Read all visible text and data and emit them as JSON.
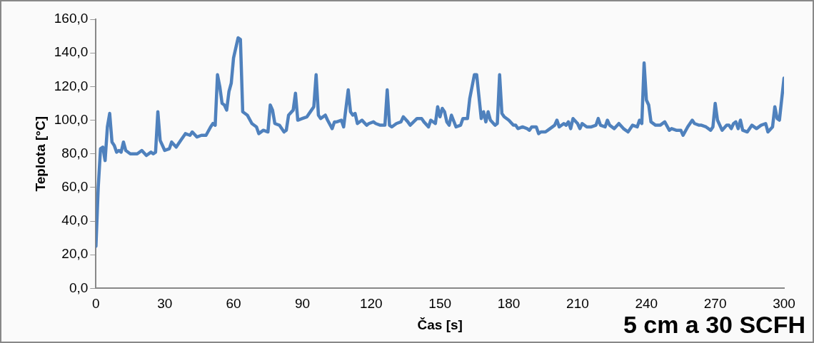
{
  "chart_data": {
    "type": "line",
    "xlabel": "Čas [s]",
    "ylabel": "Teplota [°C]",
    "annotations": [
      "5 cm a 30 SCFH"
    ],
    "xlim": [
      0,
      300
    ],
    "xticks": [
      0,
      30,
      60,
      90,
      120,
      150,
      180,
      210,
      240,
      270,
      300
    ],
    "ylim": [
      0,
      160
    ],
    "yticks": [
      {
        "value": 0,
        "label": "0,0"
      },
      {
        "value": 20,
        "label": "20,0"
      },
      {
        "value": 40,
        "label": "40,0"
      },
      {
        "value": 60,
        "label": "60,0"
      },
      {
        "value": 80,
        "label": "80,0"
      },
      {
        "value": 100,
        "label": "100,0"
      },
      {
        "value": 120,
        "label": "120,0"
      },
      {
        "value": 140,
        "label": "140,0"
      },
      {
        "value": 160,
        "label": "160,0"
      }
    ],
    "grid": false,
    "legend": false,
    "marker": "none",
    "line_style": "solid",
    "series": [
      {
        "color": "#4f81bd",
        "x": [
          0,
          1,
          2,
          3,
          4,
          5,
          6,
          7,
          8,
          9,
          10,
          11,
          12,
          13,
          15,
          18,
          20,
          22,
          24,
          25,
          26,
          27,
          28,
          30,
          32,
          33,
          35,
          37,
          39,
          41,
          42,
          44,
          46,
          48,
          50,
          51,
          52,
          53,
          54,
          55,
          56,
          57,
          58,
          59,
          60,
          61,
          62,
          63,
          64,
          66,
          68,
          70,
          71,
          73,
          75,
          76,
          77,
          78,
          80,
          82,
          83,
          84,
          86,
          87,
          88,
          90,
          92,
          94,
          95,
          96,
          97,
          98,
          100,
          101,
          103,
          104,
          105,
          107,
          108,
          110,
          111,
          112,
          113,
          114,
          116,
          118,
          119,
          121,
          122,
          124,
          126,
          127,
          128,
          129,
          131,
          133,
          134,
          136,
          137,
          140,
          142,
          143,
          145,
          146,
          148,
          149,
          150,
          151,
          152,
          153,
          154,
          155,
          157,
          159,
          160,
          162,
          163,
          165,
          166,
          167,
          168,
          169,
          170,
          171,
          172,
          174,
          175,
          176,
          177,
          178,
          180,
          182,
          183,
          184,
          186,
          188,
          189,
          190,
          192,
          193,
          194,
          196,
          198,
          200,
          201,
          202,
          204,
          205,
          206,
          207,
          208,
          210,
          211,
          212,
          214,
          216,
          218,
          219,
          220,
          222,
          223,
          224,
          226,
          228,
          230,
          232,
          234,
          236,
          237,
          238,
          239,
          240,
          241,
          242,
          244,
          246,
          248,
          250,
          251,
          253,
          255,
          256,
          258,
          260,
          261,
          263,
          264,
          266,
          268,
          269,
          270,
          271,
          273,
          275,
          276,
          277,
          278,
          279,
          280,
          281,
          282,
          284,
          286,
          288,
          290,
          292,
          293,
          295,
          296,
          297,
          298,
          300
        ],
        "values": [
          25,
          60,
          83,
          84,
          76,
          96,
          104,
          87,
          85,
          81,
          82,
          81,
          87,
          82,
          80,
          80,
          82,
          79,
          81,
          80,
          81,
          105,
          88,
          82,
          83,
          87,
          84,
          88,
          92,
          91,
          93,
          90,
          91,
          91,
          96,
          98,
          97,
          127,
          120,
          110,
          109,
          106,
          117,
          122,
          137,
          143,
          149,
          148,
          105,
          103,
          98,
          96,
          92,
          94,
          93,
          109,
          106,
          98,
          97,
          93,
          94,
          103,
          106,
          116,
          100,
          101,
          102,
          106,
          108,
          127,
          103,
          101,
          103,
          100,
          95,
          99,
          99,
          100,
          96,
          118,
          105,
          103,
          104,
          98,
          100,
          97,
          98,
          99,
          98,
          97,
          97,
          118,
          97,
          96,
          98,
          99,
          102,
          99,
          97,
          101,
          101,
          99,
          96,
          100,
          98,
          108,
          102,
          107,
          105,
          99,
          97,
          103,
          96,
          97,
          101,
          101,
          113,
          127,
          127,
          114,
          101,
          105,
          99,
          105,
          100,
          97,
          98,
          127,
          104,
          102,
          100,
          97,
          97,
          95,
          96,
          95,
          94,
          96,
          96,
          92,
          93,
          93,
          95,
          97,
          100,
          96,
          98,
          97,
          99,
          95,
          101,
          98,
          95,
          98,
          96,
          96,
          97,
          101,
          97,
          96,
          100,
          97,
          95,
          98,
          95,
          93,
          97,
          96,
          100,
          98,
          134,
          112,
          109,
          99,
          97,
          97,
          99,
          94,
          95,
          94,
          94,
          91,
          96,
          100,
          98,
          97,
          97,
          96,
          94,
          96,
          110,
          100,
          94,
          97,
          97,
          95,
          98,
          99,
          95,
          100,
          94,
          93,
          97,
          95,
          97,
          98,
          93,
          96,
          108,
          101,
          100,
          125
        ]
      }
    ]
  }
}
